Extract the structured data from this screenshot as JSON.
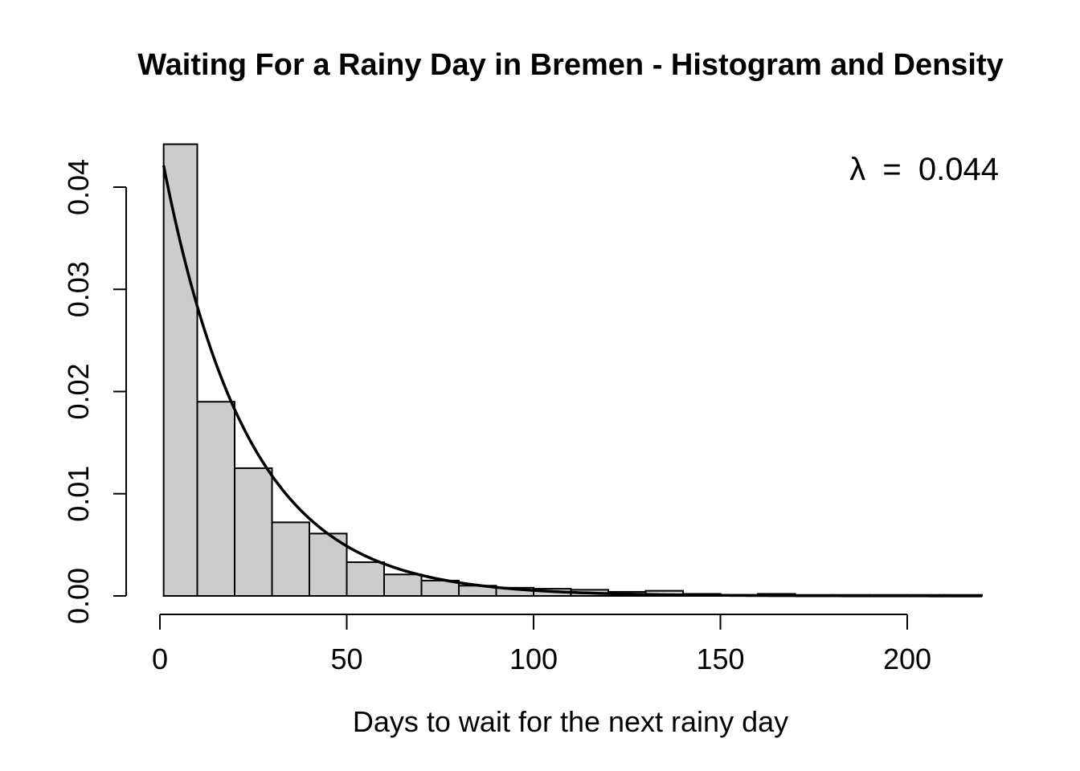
{
  "chart_data": {
    "type": "bar",
    "title": "Waiting For a Rainy Day in Bremen - Histogram and Density",
    "xlabel": "Days to wait for the next rainy day",
    "ylabel": "",
    "xlim": [
      0,
      220
    ],
    "ylim": [
      0,
      0.045
    ],
    "x_ticks": [
      0,
      50,
      100,
      150,
      200
    ],
    "x_tick_labels": [
      "0",
      "50",
      "100",
      "150",
      "200"
    ],
    "y_ticks": [
      0,
      0.01,
      0.02,
      0.03,
      0.04
    ],
    "y_tick_labels": [
      "0.00",
      "0.01",
      "0.02",
      "0.03",
      "0.04"
    ],
    "bin_edges": [
      1,
      10,
      20,
      30,
      40,
      50,
      60,
      70,
      80,
      90,
      100,
      110,
      120,
      130,
      140,
      150,
      160,
      170,
      180,
      190,
      200,
      210,
      220
    ],
    "values": [
      0.0442,
      0.019,
      0.0125,
      0.0072,
      0.0061,
      0.0033,
      0.0021,
      0.0015,
      0.001,
      0.0008,
      0.0007,
      0.0006,
      0.0004,
      0.0005,
      0.0002,
      0.0001,
      0.0002,
      0.0001,
      0.0001,
      0.0001,
      0.0001,
      0.0001
    ],
    "density_curve": {
      "type": "line",
      "lambda": 0.044,
      "x_range": [
        1,
        220
      ]
    },
    "annotation": {
      "symbol": "λ",
      "equals": "=",
      "value": "0.044"
    },
    "grid": false,
    "legend": "none"
  }
}
